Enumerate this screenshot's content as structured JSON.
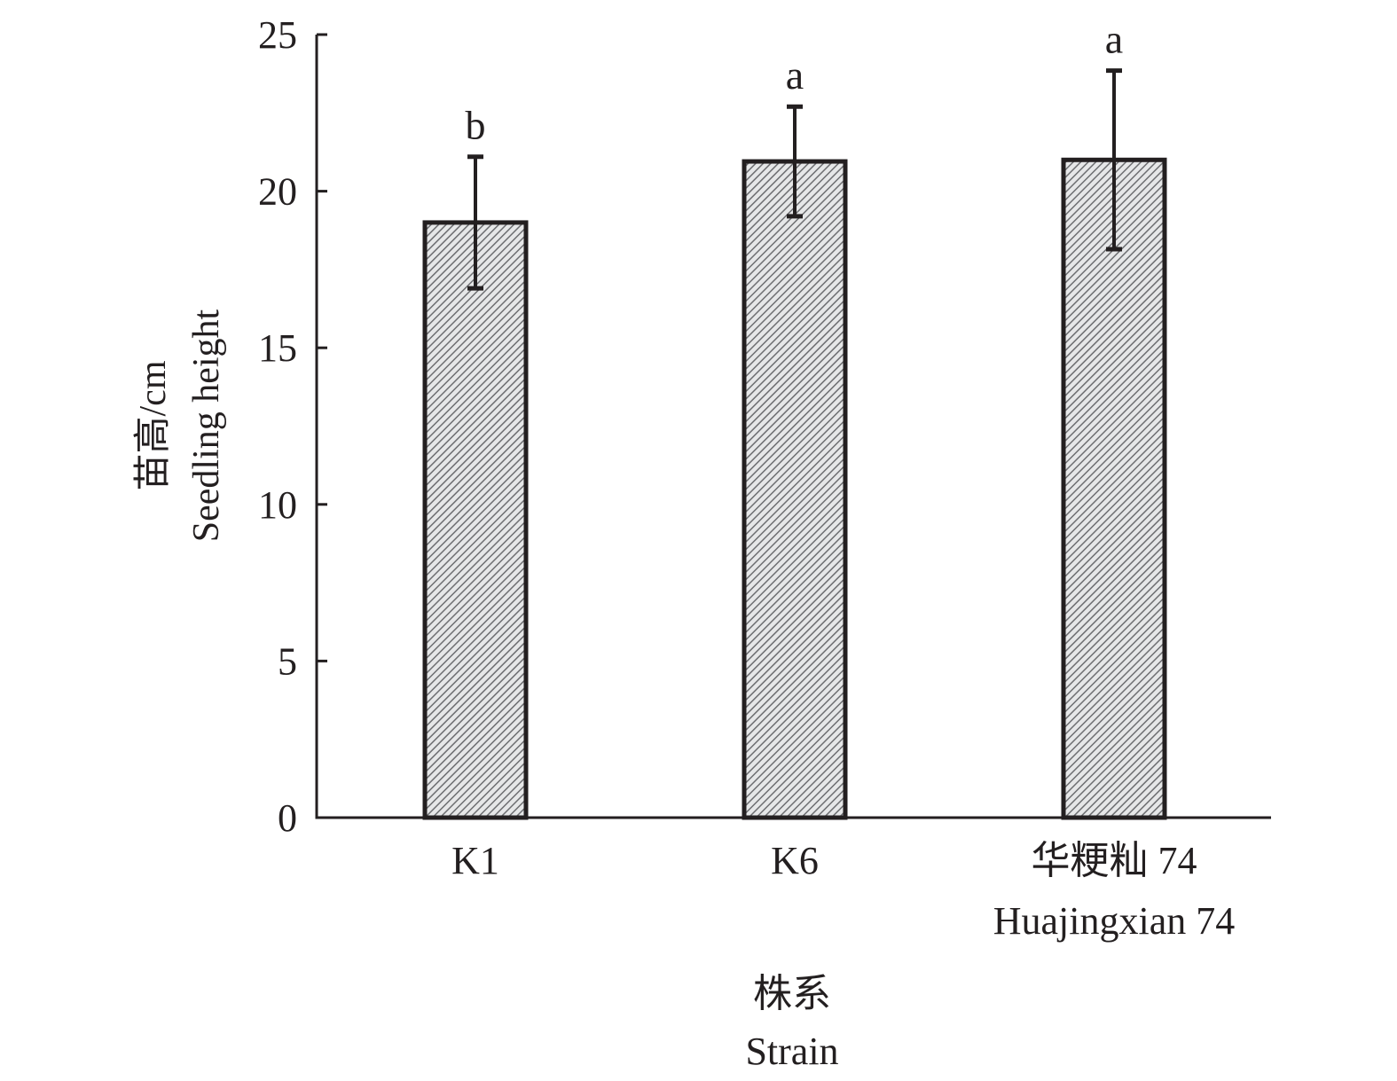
{
  "chart_data": {
    "type": "bar",
    "title": "",
    "categories": [
      {
        "line1": "K1",
        "line2": ""
      },
      {
        "line1": "K6",
        "line2": ""
      },
      {
        "line1": "华粳籼 74",
        "line2": "Huajingxian 74"
      }
    ],
    "values": [
      19.0,
      20.95,
      21.0
    ],
    "error": [
      2.1,
      1.75,
      2.85
    ],
    "significance": [
      "b",
      "a",
      "a"
    ],
    "ylim": [
      0,
      25
    ],
    "yticks": [
      0,
      5,
      10,
      15,
      20,
      25
    ],
    "ylabel": {
      "line1": "苗高/cm",
      "line2": "Seedling height"
    },
    "xlabel": {
      "line1": "株系",
      "line2": "Strain"
    },
    "grid": false,
    "legend": "none",
    "bar_fill": "hatched",
    "colors": {
      "bar_edge": "#231f20",
      "hatch": "#6d6e71",
      "bar_bg": "#e6e7e8",
      "axis": "#231f20"
    }
  }
}
